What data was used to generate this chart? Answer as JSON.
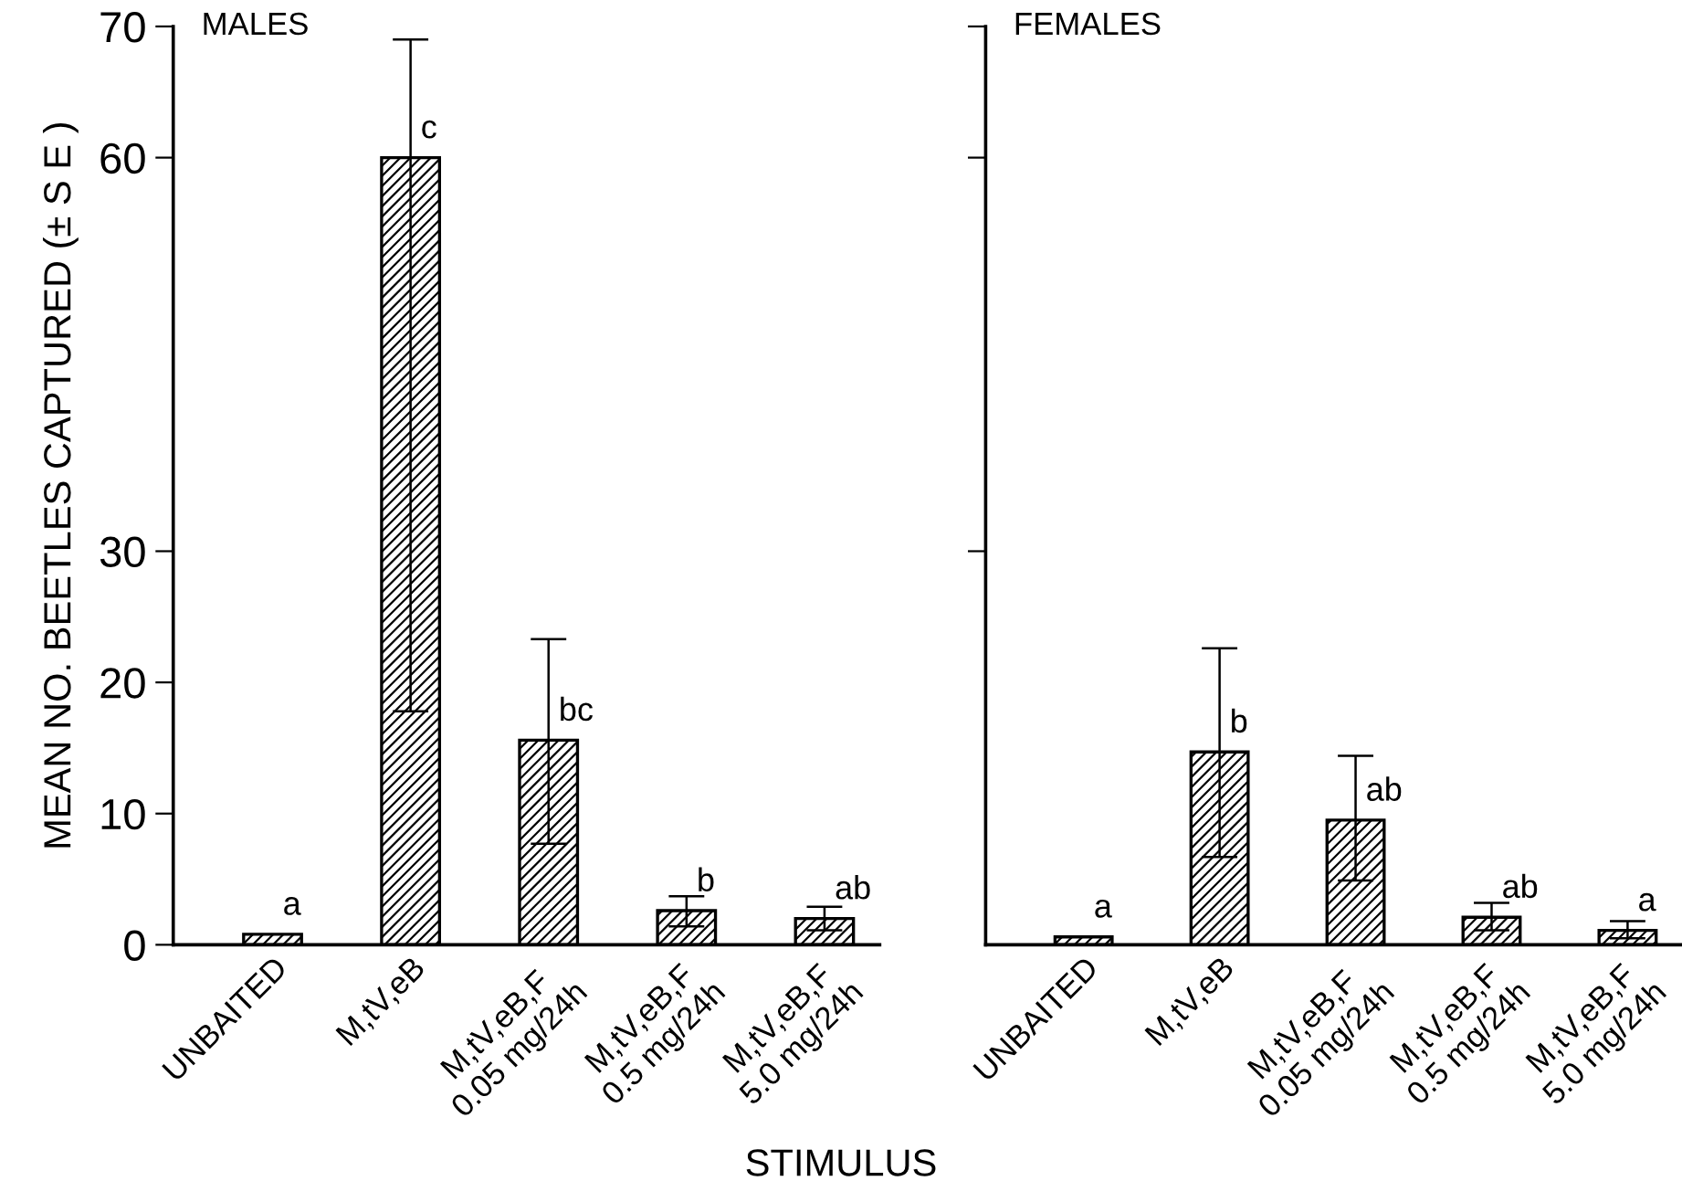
{
  "chart_data": [
    {
      "type": "bar",
      "title": "MALES",
      "ylabel": "MEAN NO. BEETLES CAPTURED (± S E )",
      "xlabel": "STIMULUS",
      "categories": [
        "UNBAITED",
        "M,tV,eB",
        "M,tV,eB,F\n0.05 mg/24h",
        "M,tV,eB,F\n0.5 mg/24h",
        "M,tV,eB,F\n5.0 mg/24h"
      ],
      "series": [
        {
          "color": "#000000",
          "values": [
            0.8,
            60,
            15.6,
            2.6,
            2.0
          ],
          "errors": [
            null,
            [
              17.8,
              69
            ],
            [
              7.7,
              23.3
            ],
            [
              1.4,
              3.7
            ],
            [
              1.1,
              2.9
            ]
          ]
        }
      ],
      "ylim": [
        0,
        70
      ],
      "yticks": [
        0,
        10,
        20,
        30,
        60,
        70
      ],
      "annotations": [
        "a",
        "c",
        "bc",
        "b",
        "ab"
      ]
    },
    {
      "type": "bar",
      "title": "FEMALES",
      "categories": [
        "UNBAITED",
        "M,tV,eB",
        "M,tV,eB,F\n0.05 mg/24h",
        "M,tV,eB,F\n0.5 mg/24h",
        "M,tV,eB,F\n5.0 mg/24h"
      ],
      "series": [
        {
          "color": "#000000",
          "values": [
            0.6,
            14.7,
            9.5,
            2.1,
            1.1
          ],
          "errors": [
            null,
            [
              6.7,
              22.6
            ],
            [
              4.9,
              14.4
            ],
            [
              1.1,
              3.2
            ],
            [
              0.5,
              1.8
            ]
          ]
        }
      ],
      "ylim": [
        0,
        70
      ],
      "yticks": [
        30,
        60,
        70
      ],
      "tick_labels": "x",
      "annotations": [
        "a",
        "b",
        "ab",
        "ab",
        "a"
      ]
    }
  ]
}
